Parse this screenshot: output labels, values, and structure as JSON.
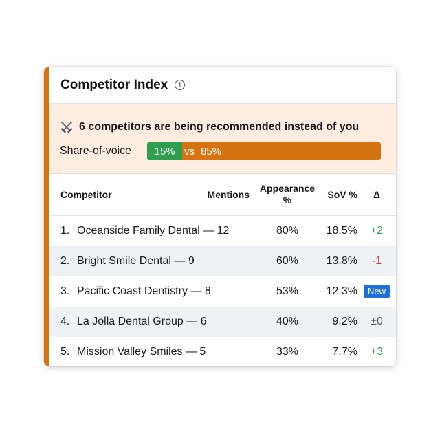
{
  "card": {
    "title": "Competitor Index",
    "info_icon": "info-icon",
    "accent_color": "#D4730F"
  },
  "alert": {
    "icon": "crossed-swords-icon",
    "message": "6 competitors are being recommended instead of you",
    "sov_label": "Share-of-voice",
    "you_percent": "15%",
    "vs_label": "vs",
    "competitors_percent": "85%",
    "you_fraction": 0.15,
    "you_color": "#2E9E4F",
    "competitors_color": "#D4730F"
  },
  "table": {
    "headers": {
      "competitor": "Competitor",
      "mentions": "Mentions",
      "appearance_line1": "Appearance",
      "appearance_line2": "%",
      "sov": "SoV %",
      "delta": "Δ"
    },
    "rows": [
      {
        "rank": "1.",
        "name": "Oceanside Family Dental — 12",
        "appearance": "80%",
        "sov": "18.5%",
        "delta": "+2",
        "delta_type": "pos"
      },
      {
        "rank": "2.",
        "name": "Bright Smile Dental — 9",
        "appearance": "60%",
        "sov": "13.8%",
        "delta": "-1",
        "delta_type": "neg"
      },
      {
        "rank": "3.",
        "name": "Pacific Coast Dentistry — 8",
        "appearance": "53%",
        "sov": "12.3%",
        "delta": "New",
        "delta_type": "new"
      },
      {
        "rank": "4.",
        "name": "La Jolla Dental Group — 6",
        "appearance": "40%",
        "sov": "9.2%",
        "delta": "±0",
        "delta_type": "zero"
      },
      {
        "rank": "5.",
        "name": "Mission Valley Smiles — 5",
        "appearance": "33%",
        "sov": "7.7%",
        "delta": "+3",
        "delta_type": "pos"
      }
    ]
  }
}
